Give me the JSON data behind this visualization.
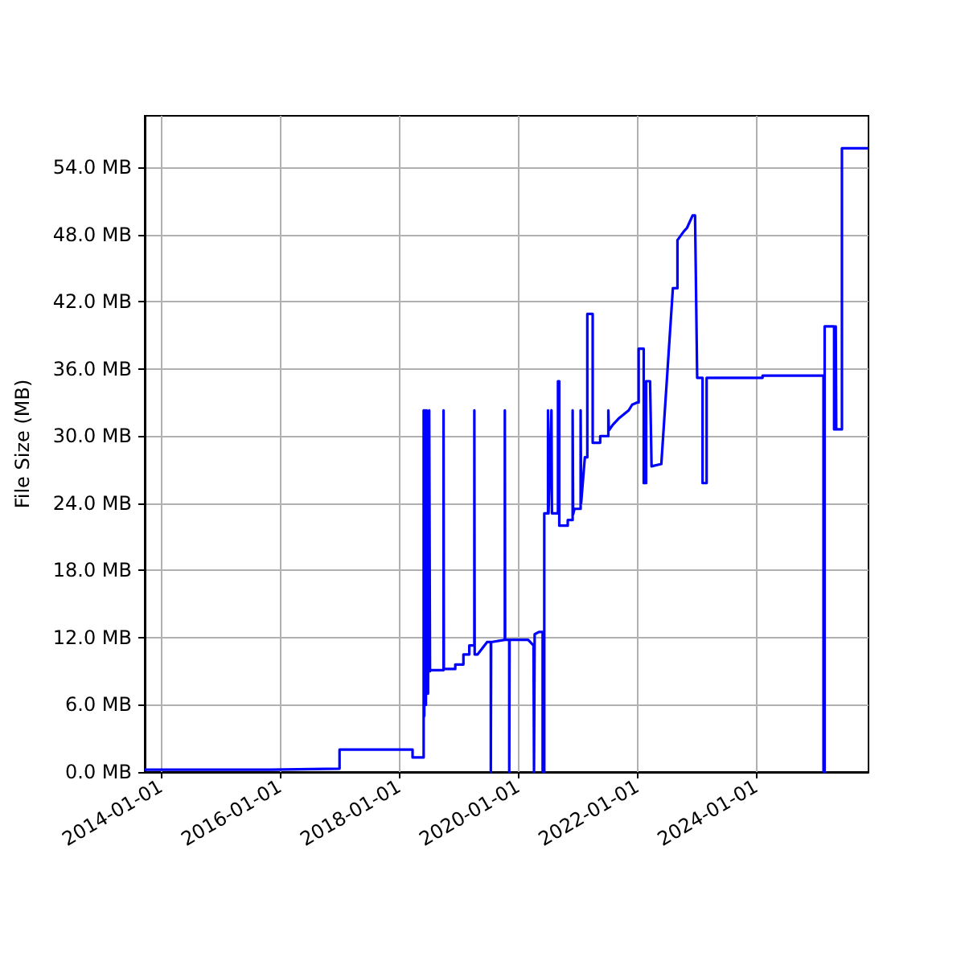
{
  "chart_data": {
    "type": "line",
    "ylabel": "File Size (MB)",
    "color": "#0000ff",
    "grid": true,
    "xlim": [
      "2013-09-24",
      "2025-11-20"
    ],
    "xticks": [
      "2014-01-01",
      "2016-01-01",
      "2018-01-01",
      "2020-01-01",
      "2022-01-01",
      "2024-01-01"
    ],
    "ylim": [
      0,
      58.6
    ],
    "yticks": [
      {
        "value": 0,
        "label": "0.0 MB"
      },
      {
        "value": 6,
        "label": "6.0 MB"
      },
      {
        "value": 12,
        "label": "12.0 MB"
      },
      {
        "value": 18,
        "label": "18.0 MB"
      },
      {
        "value": 24,
        "label": "24.0 MB"
      },
      {
        "value": 30,
        "label": "30.0 MB"
      },
      {
        "value": 36,
        "label": "36.0 MB"
      },
      {
        "value": 42,
        "label": "42.0 MB"
      },
      {
        "value": 48,
        "label": "48.0 MB"
      },
      {
        "value": 54,
        "label": "54.0 MB"
      }
    ],
    "x": [
      "2013-09-24",
      "2015-11-01",
      "2015-11-01",
      "2017-01-01",
      "2017-01-01",
      "2018-03-25",
      "2018-03-25",
      "2018-06-01",
      "2018-06-01",
      "2018-06-05",
      "2018-06-10",
      "2018-06-15",
      "2018-06-20",
      "2018-06-28",
      "2018-07-05",
      "2018-07-10",
      "2018-07-16",
      "2018-10-01",
      "2018-10-01",
      "2018-10-03",
      "2018-12-12",
      "2018-12-12",
      "2019-01-31",
      "2019-01-31",
      "2019-03-08",
      "2019-03-08",
      "2019-04-08",
      "2019-04-08",
      "2019-04-10",
      "2019-04-28",
      "2019-06-25",
      "2019-07-18",
      "2019-07-18",
      "2019-07-20",
      "2019-10-12",
      "2019-10-12",
      "2019-10-14",
      "2019-11-08",
      "2019-11-08",
      "2019-11-10",
      "2020-03-03",
      "2020-04-05",
      "2020-04-08",
      "2020-04-08",
      "2020-04-12",
      "2020-05-08",
      "2020-05-31",
      "2020-05-31",
      "2020-06-10",
      "2020-06-10",
      "2020-07-03",
      "2020-07-03",
      "2020-07-06",
      "2020-07-24",
      "2020-07-27",
      "2020-09-02",
      "2020-09-02",
      "2020-09-10",
      "2020-09-10",
      "2020-11-01",
      "2020-11-01",
      "2020-12-01",
      "2020-12-01",
      "2020-12-04",
      "2020-12-12",
      "2021-01-19",
      "2021-01-19",
      "2021-01-22",
      "2021-02-14",
      "2021-03-01",
      "2021-03-01",
      "2021-04-03",
      "2021-04-03",
      "2021-05-19",
      "2021-05-19",
      "2021-07-08",
      "2021-07-08",
      "2021-07-11",
      "2021-08-04",
      "2021-09-12",
      "2021-11-10",
      "2021-12-01",
      "2022-01-01",
      "2022-01-10",
      "2022-01-10",
      "2022-02-10",
      "2022-02-10",
      "2022-02-25",
      "2022-02-25",
      "2022-03-21",
      "2022-03-30",
      "2022-05-29",
      "2022-08-08",
      "2022-09-05",
      "2022-09-05",
      "2022-10-10",
      "2022-11-03",
      "2022-12-07",
      "2022-12-22",
      "2023-01-04",
      "2023-02-06",
      "2023-02-06",
      "2023-03-03",
      "2023-03-03",
      "2024-02-09",
      "2024-02-09",
      "2025-02-17",
      "2025-02-17",
      "2025-02-24",
      "2025-02-24",
      "2025-04-23",
      "2025-04-23",
      "2025-05-03",
      "2025-05-03",
      "2025-05-06",
      "2025-06-10",
      "2025-06-10",
      "2025-11-20"
    ],
    "values": [
      0.2,
      0.2,
      0.3,
      0.3,
      2.0,
      2.0,
      1.3,
      1.3,
      32.3,
      5.0,
      32.3,
      6.0,
      32.3,
      7.0,
      32.3,
      9.0,
      9.1,
      9.1,
      32.3,
      9.2,
      9.2,
      9.6,
      9.6,
      10.5,
      10.5,
      11.3,
      11.3,
      32.3,
      10.5,
      10.5,
      11.6,
      11.6,
      0,
      11.6,
      11.8,
      32.3,
      11.8,
      11.8,
      0,
      11.8,
      11.8,
      11.3,
      11.3,
      0,
      12.3,
      12.5,
      12.5,
      0,
      0,
      23.1,
      23.1,
      32.3,
      23.1,
      32.3,
      23.1,
      23.1,
      34.9,
      34.9,
      22.0,
      22.0,
      22.5,
      22.5,
      32.3,
      23.0,
      23.5,
      23.5,
      32.3,
      24.0,
      28.1,
      28.1,
      40.9,
      40.9,
      29.4,
      29.4,
      30.0,
      30.0,
      32.3,
      30.5,
      31.0,
      31.6,
      32.3,
      32.8,
      33.0,
      33.0,
      37.8,
      37.8,
      25.8,
      25.8,
      34.9,
      34.9,
      27.3,
      27.5,
      43.2,
      43.2,
      47.5,
      48.2,
      48.6,
      49.7,
      49.7,
      35.2,
      35.2,
      25.8,
      25.8,
      35.2,
      35.2,
      35.4,
      35.4,
      0,
      0,
      39.8,
      39.8,
      30.6,
      30.6,
      39.8,
      30.6,
      30.6,
      55.7,
      55.7
    ]
  }
}
